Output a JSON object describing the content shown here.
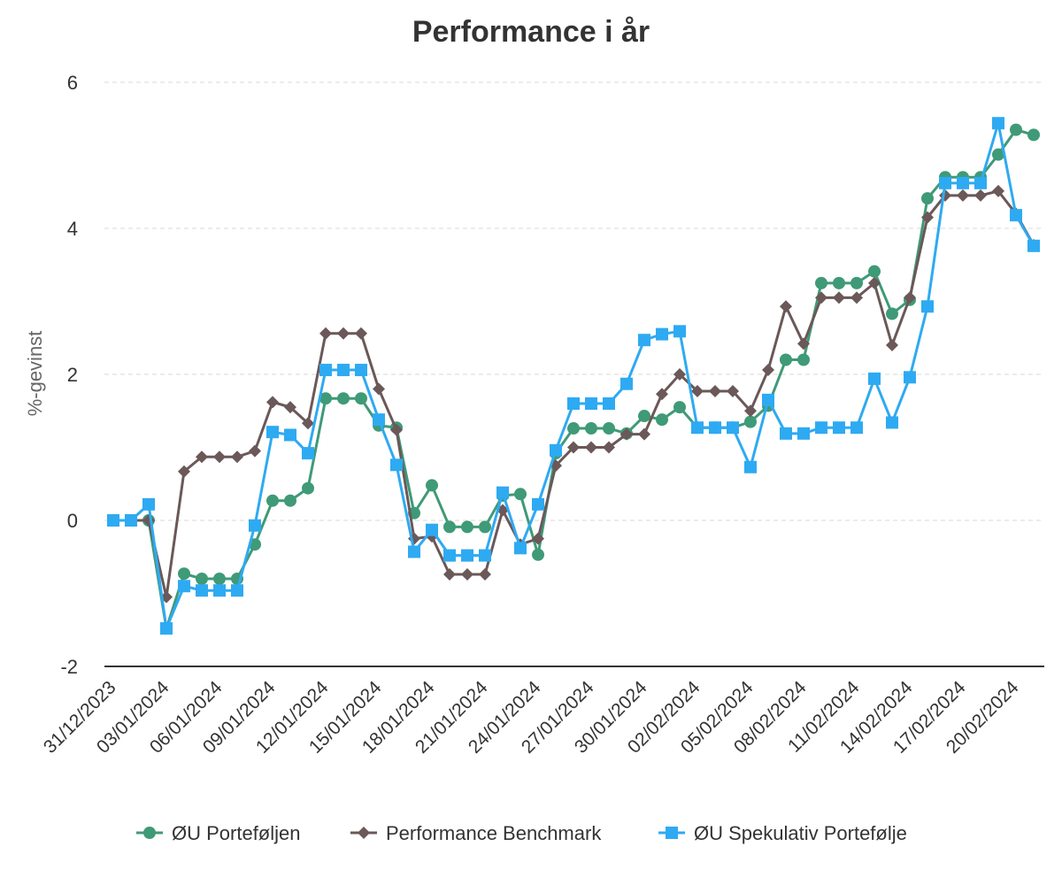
{
  "chart_data": {
    "type": "line",
    "title": "Performance i år",
    "xlabel": "",
    "ylabel": "%-gevinst",
    "ylim": [
      -2,
      6
    ],
    "yticks": [
      "-2",
      "0",
      "2",
      "4",
      "6"
    ],
    "grid": true,
    "legend_position": "bottom",
    "x": [
      "31/12/2023",
      "01/01/2024",
      "02/01/2024",
      "03/01/2024",
      "04/01/2024",
      "05/01/2024",
      "06/01/2024",
      "07/01/2024",
      "08/01/2024",
      "09/01/2024",
      "10/01/2024",
      "11/01/2024",
      "12/01/2024",
      "13/01/2024",
      "14/01/2024",
      "15/01/2024",
      "16/01/2024",
      "17/01/2024",
      "18/01/2024",
      "19/01/2024",
      "20/01/2024",
      "21/01/2024",
      "22/01/2024",
      "23/01/2024",
      "24/01/2024",
      "25/01/2024",
      "26/01/2024",
      "27/01/2024",
      "28/01/2024",
      "29/01/2024",
      "30/01/2024",
      "31/01/2024",
      "01/02/2024",
      "02/02/2024",
      "03/02/2024",
      "04/02/2024",
      "05/02/2024",
      "06/02/2024",
      "07/02/2024",
      "08/02/2024",
      "09/02/2024",
      "10/02/2024",
      "11/02/2024",
      "12/02/2024",
      "13/02/2024",
      "14/02/2024",
      "15/02/2024",
      "16/02/2024",
      "17/02/2024",
      "18/02/2024",
      "19/02/2024",
      "20/02/2024",
      "21/02/2024"
    ],
    "x_tick_labels": [
      "31/12/2023",
      "03/01/2024",
      "06/01/2024",
      "09/01/2024",
      "12/01/2024",
      "15/01/2024",
      "18/01/2024",
      "21/01/2024",
      "24/01/2024",
      "27/01/2024",
      "30/01/2024",
      "02/02/2024",
      "05/02/2024",
      "08/02/2024",
      "11/02/2024",
      "14/02/2024",
      "17/02/2024",
      "20/02/2024"
    ],
    "series": [
      {
        "name": "ØU Porteføljen",
        "color": "#3f9a77",
        "marker": "circle",
        "values": [
          0,
          0,
          0,
          -1.48,
          -0.73,
          -0.8,
          -0.8,
          -0.8,
          -0.33,
          0.27,
          0.27,
          0.44,
          1.67,
          1.67,
          1.67,
          1.3,
          1.27,
          0.1,
          0.48,
          -0.09,
          -0.09,
          -0.09,
          0.34,
          0.36,
          -0.47,
          0.92,
          1.26,
          1.26,
          1.26,
          1.19,
          1.43,
          1.38,
          1.55,
          1.27,
          1.27,
          1.27,
          1.35,
          1.57,
          2.2,
          2.2,
          3.25,
          3.25,
          3.25,
          3.41,
          2.83,
          3.02,
          4.41,
          4.7,
          4.7,
          4.7,
          5.01,
          5.35,
          5.28
        ]
      },
      {
        "name": "Performance Benchmark",
        "color": "#6b5858",
        "marker": "diamond",
        "values": [
          0,
          0,
          0,
          -1.05,
          0.67,
          0.87,
          0.87,
          0.87,
          0.95,
          1.62,
          1.55,
          1.33,
          2.56,
          2.56,
          2.56,
          1.8,
          1.24,
          -0.25,
          -0.22,
          -0.74,
          -0.74,
          -0.74,
          0.14,
          -0.33,
          -0.25,
          0.75,
          1.0,
          1.0,
          1.0,
          1.18,
          1.18,
          1.73,
          2.0,
          1.77,
          1.77,
          1.77,
          1.5,
          2.06,
          2.93,
          2.42,
          3.05,
          3.05,
          3.05,
          3.25,
          2.4,
          3.05,
          4.15,
          4.45,
          4.45,
          4.45,
          4.51,
          4.2,
          3.77
        ]
      },
      {
        "name": "ØU Spekulativ Portefølje",
        "color": "#2eaaf2",
        "marker": "square",
        "values": [
          0,
          0,
          0.22,
          -1.48,
          -0.9,
          -0.96,
          -0.96,
          -0.96,
          -0.07,
          1.21,
          1.17,
          0.92,
          2.06,
          2.06,
          2.06,
          1.38,
          0.76,
          -0.43,
          -0.13,
          -0.48,
          -0.48,
          -0.48,
          0.38,
          -0.38,
          0.22,
          0.96,
          1.6,
          1.6,
          1.6,
          1.87,
          2.47,
          2.55,
          2.59,
          1.27,
          1.27,
          1.27,
          0.73,
          1.65,
          1.19,
          1.19,
          1.27,
          1.27,
          1.27,
          1.94,
          1.34,
          1.96,
          2.93,
          4.62,
          4.62,
          4.62,
          5.44,
          4.18,
          3.76
        ]
      }
    ]
  }
}
